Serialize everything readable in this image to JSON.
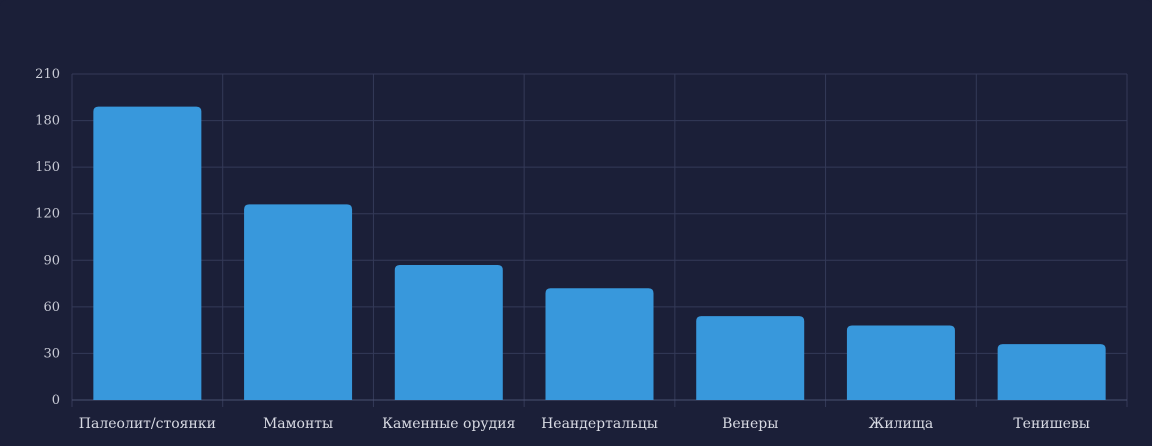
{
  "chart_data": {
    "type": "bar",
    "categories": [
      "Палеолит/стоянки",
      "Мамонты",
      "Каменные орудия",
      "Неандертальцы",
      "Венеры",
      "Жилища",
      "Тенишевы"
    ],
    "values": [
      189,
      126,
      87,
      72,
      54,
      48,
      36
    ],
    "title": "",
    "xlabel": "",
    "ylabel": "",
    "ylim": [
      0,
      210
    ],
    "yticks": [
      0,
      30,
      60,
      90,
      120,
      150,
      180,
      210
    ],
    "grid": true,
    "legend": "none",
    "bar_color": "#3898dc",
    "background_color": "#1b1f38",
    "grid_color": "#343a58"
  }
}
